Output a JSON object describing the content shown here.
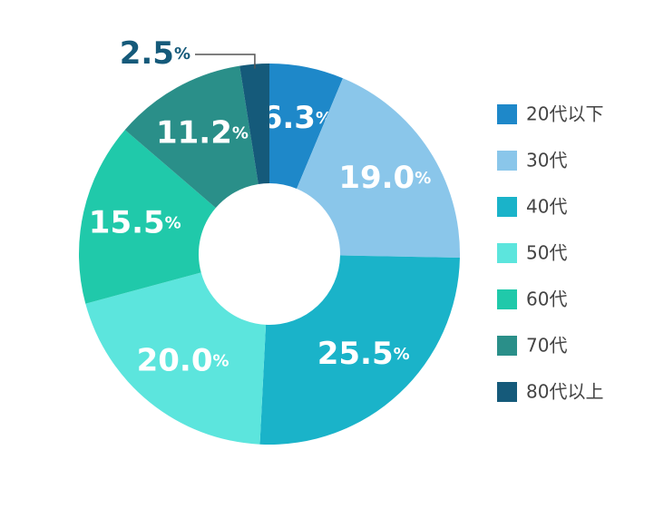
{
  "chart_data": {
    "type": "donut",
    "categories": [
      "20代以下",
      "30代",
      "40代",
      "50代",
      "60代",
      "70代",
      "80代以上"
    ],
    "values": [
      6.3,
      19.0,
      25.5,
      20.0,
      15.5,
      11.2,
      2.5
    ],
    "value_labels": [
      "6.3%",
      "19.0%",
      "25.5%",
      "20.0%",
      "15.5%",
      "11.2%",
      "2.5%"
    ],
    "colors": [
      "#1e88c9",
      "#8ac6ea",
      "#1ab3c9",
      "#5ce5dd",
      "#20c9aa",
      "#2a8f89",
      "#155a7a"
    ],
    "legend": "right"
  }
}
